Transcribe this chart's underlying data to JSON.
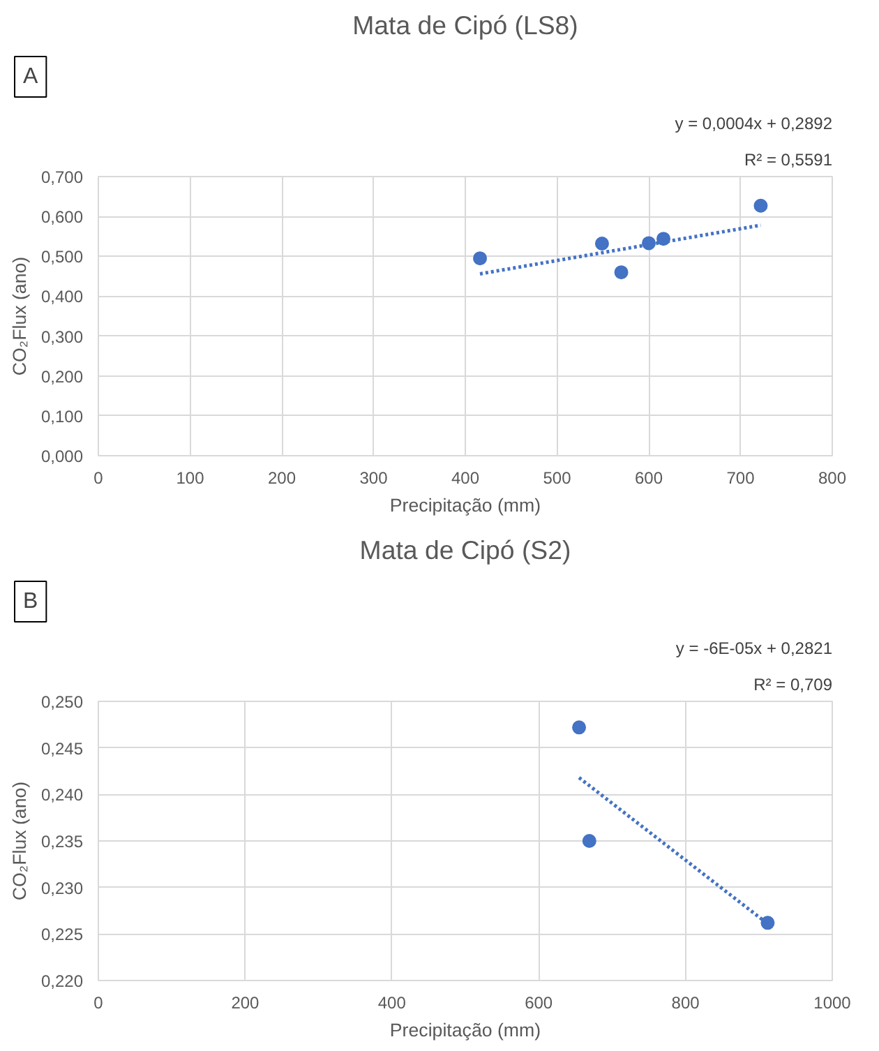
{
  "chart_data": [
    {
      "type": "scatter",
      "title": "Mata de Cipó (LS8)",
      "xlabel": "Precipitação (mm)",
      "ylabel": "CO₂Flux (ano)",
      "annotations": [
        "A",
        "y = 0,0004x + 0,2892",
        "R² = 0,5591"
      ],
      "x": [
        416,
        549,
        570,
        600,
        616,
        722
      ],
      "series": [
        {
          "color": "#4472c4",
          "marker": "circle",
          "values": [
            0.495,
            0.532,
            0.46,
            0.533,
            0.544,
            0.627
          ]
        },
        {
          "type": "line",
          "color": "#4472c4",
          "marker": "none",
          "line_style": "dotted",
          "x": [
            416,
            722
          ],
          "values": [
            0.456,
            0.578
          ]
        }
      ],
      "grid": true,
      "xlim": [
        0,
        800
      ],
      "ylim": [
        0,
        0.7
      ],
      "xticks": [
        0,
        100,
        200,
        300,
        400,
        500,
        600,
        700,
        800
      ],
      "yticks": [
        {
          "value": 0,
          "label": "0,000"
        },
        {
          "value": 0.1,
          "label": "0,100"
        },
        {
          "value": 0.2,
          "label": "0,200"
        },
        {
          "value": 0.3,
          "label": "0,300"
        },
        {
          "value": 0.4,
          "label": "0,400"
        },
        {
          "value": 0.5,
          "label": "0,500"
        },
        {
          "value": 0.6,
          "label": "0,600"
        },
        {
          "value": 0.7,
          "label": "0,700"
        }
      ]
    },
    {
      "type": "scatter",
      "title": "Mata de Cipó (S2)",
      "xlabel": "Precipitação (mm)",
      "ylabel": "CO₂Flux (ano)",
      "annotations": [
        "B",
        "y = -6E-05x + 0,2821",
        "R² = 0,709"
      ],
      "x": [
        655,
        669,
        912
      ],
      "series": [
        {
          "color": "#4472c4",
          "marker": "circle",
          "values": [
            0.2472,
            0.235,
            0.2262
          ]
        },
        {
          "type": "line",
          "color": "#4472c4",
          "marker": "none",
          "line_style": "dotted",
          "x": [
            655,
            912
          ],
          "values": [
            0.2418,
            0.2261
          ]
        }
      ],
      "grid": true,
      "xlim": [
        0,
        1000
      ],
      "ylim": [
        0.22,
        0.25
      ],
      "xticks": [
        0,
        200,
        400,
        600,
        800,
        1000
      ],
      "yticks": [
        {
          "value": 0.22,
          "label": "0,220"
        },
        {
          "value": 0.225,
          "label": "0,225"
        },
        {
          "value": 0.23,
          "label": "0,230"
        },
        {
          "value": 0.235,
          "label": "0,235"
        },
        {
          "value": 0.24,
          "label": "0,240"
        },
        {
          "value": 0.245,
          "label": "0,245"
        },
        {
          "value": 0.25,
          "label": "0,250"
        }
      ]
    }
  ]
}
